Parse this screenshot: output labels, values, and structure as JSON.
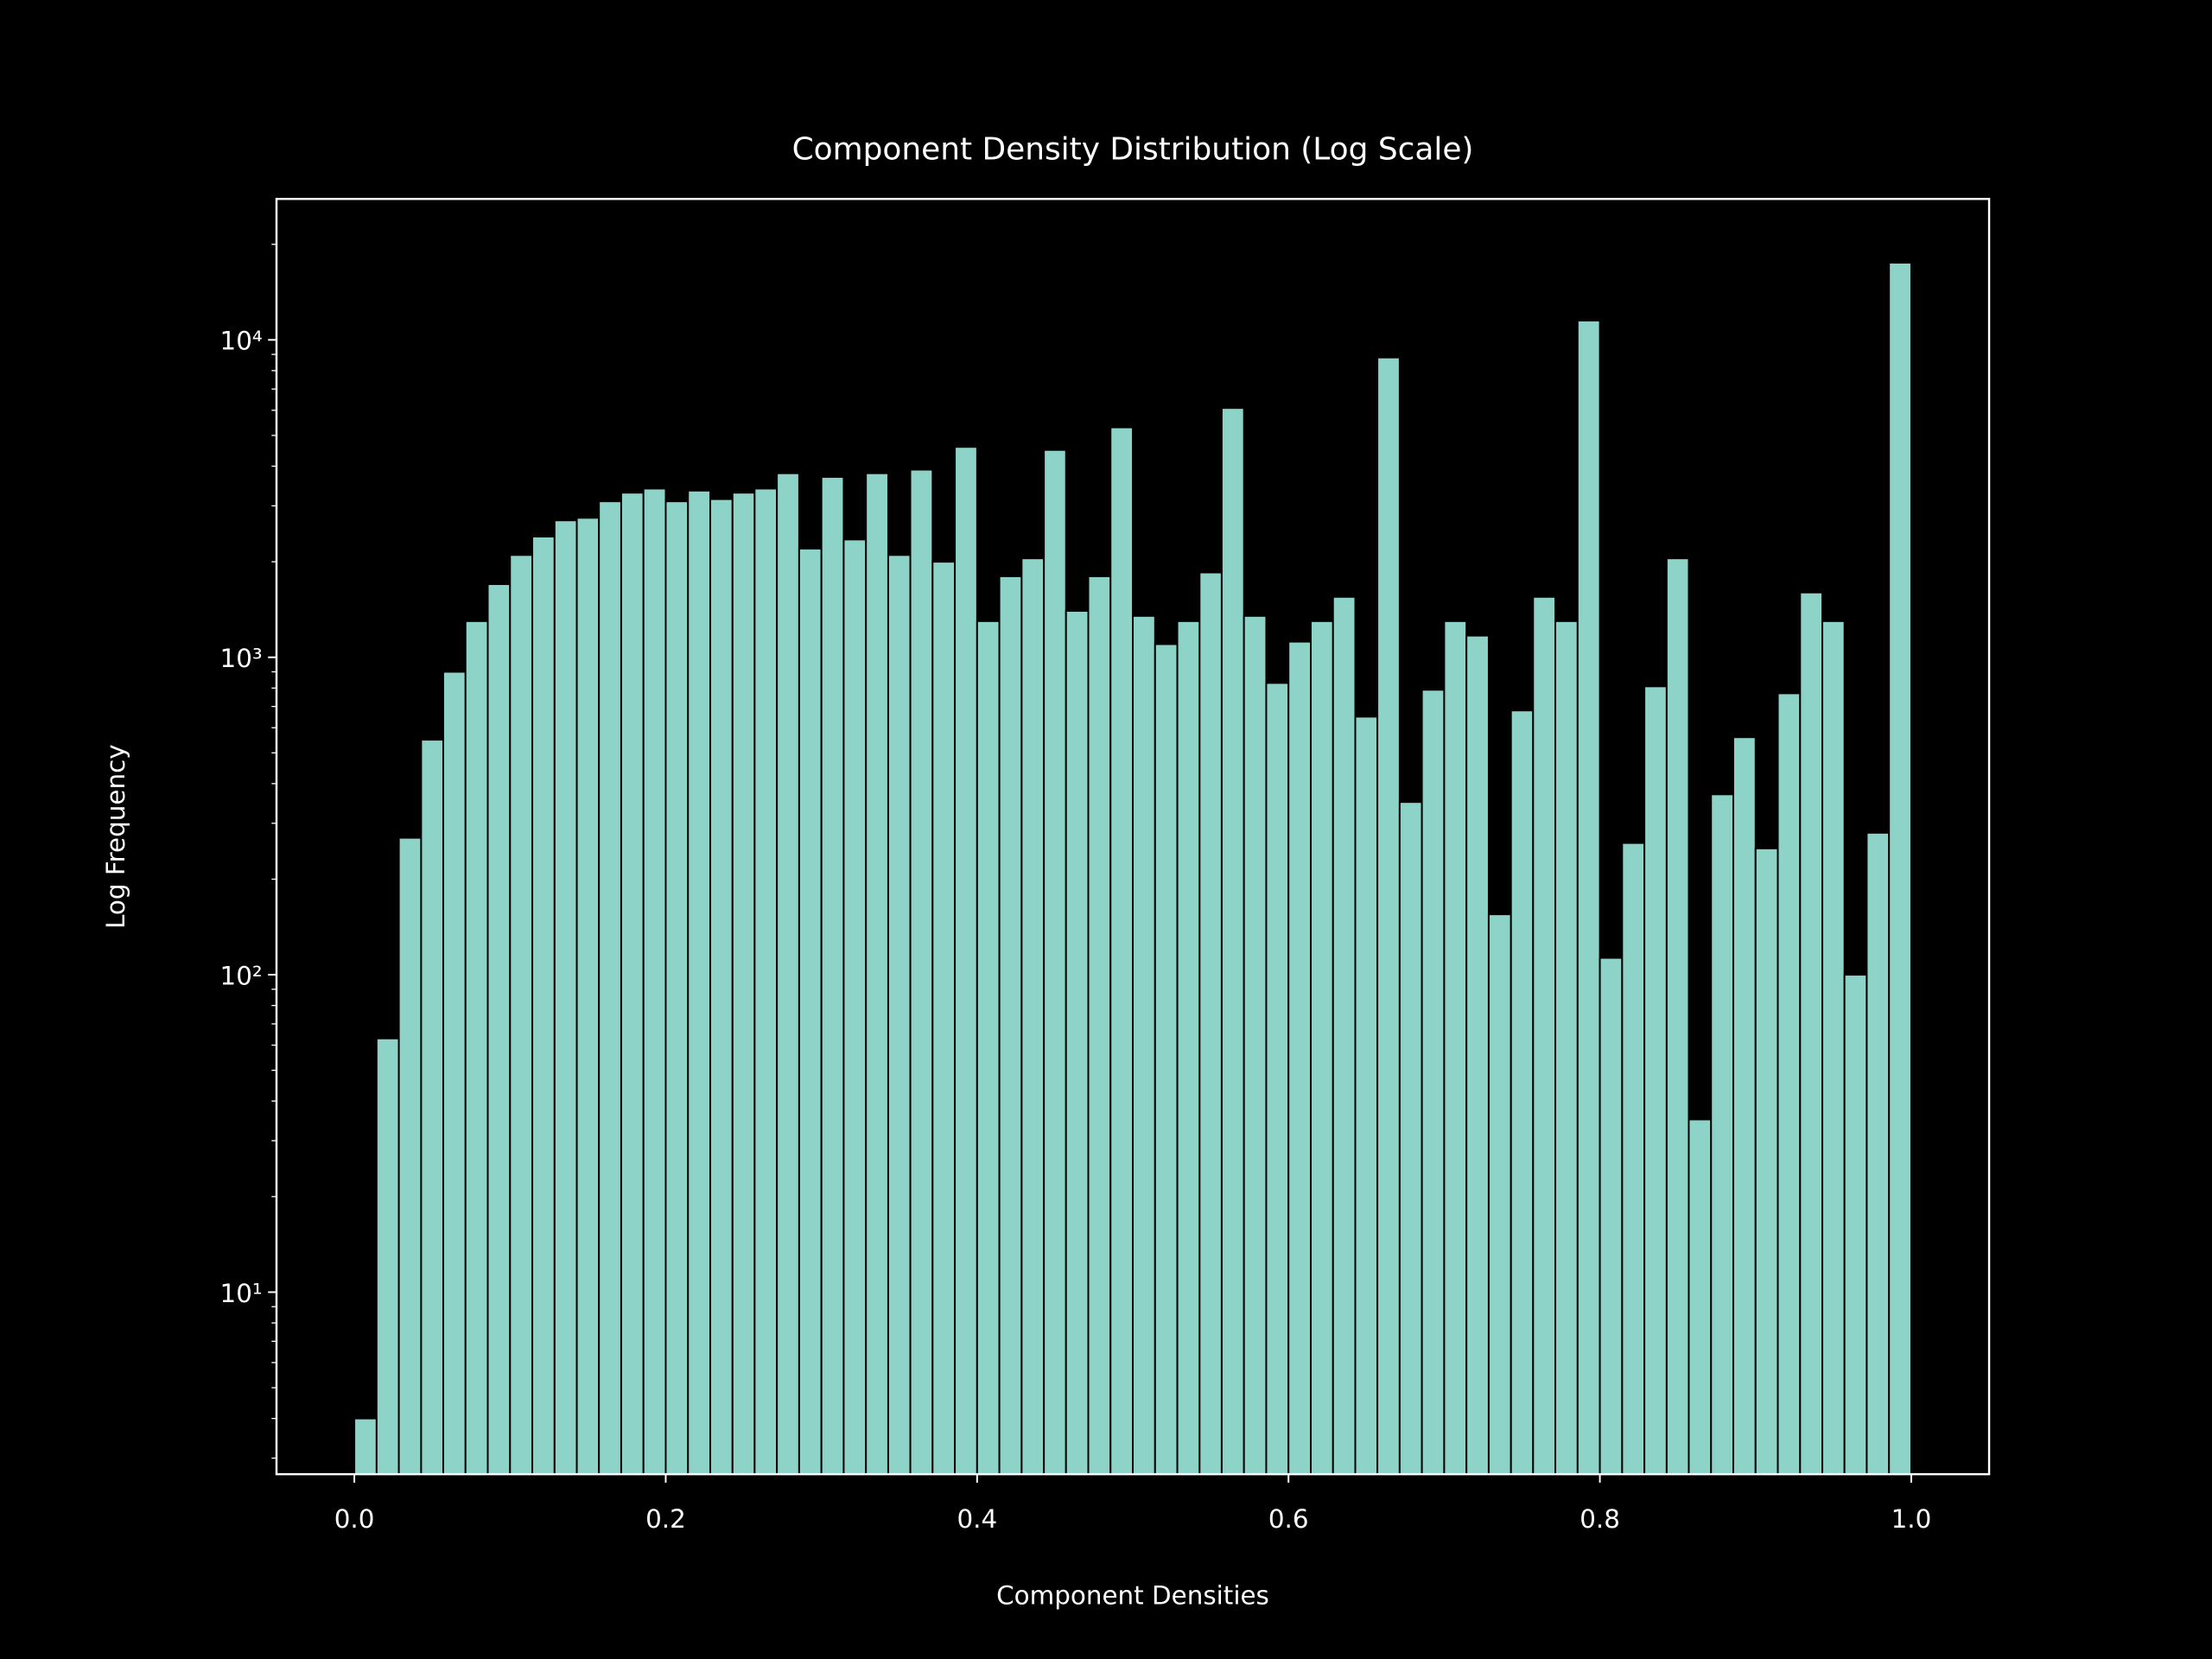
{
  "chart_data": {
    "type": "histogram",
    "title": "Component Density Distribution (Log Scale)",
    "xlabel": "Component Densities",
    "ylabel": "Log Frequency",
    "color": "#8dd3c7",
    "edgecolor": "#000000",
    "background": "#000000",
    "log_y": true,
    "bins": [
      0,
      0.0143,
      0.0286,
      0.0429,
      0.0571,
      0.0714,
      0.0857,
      0.1,
      0.1143,
      0.1286,
      0.1429,
      0.1571,
      0.1714,
      0.1857,
      0.2,
      0.2143,
      0.2286,
      0.2429,
      0.2571,
      0.2714,
      0.2857,
      0.3,
      0.3143,
      0.3286,
      0.3429,
      0.3571,
      0.3714,
      0.3857,
      0.4,
      0.4143,
      0.4286,
      0.4429,
      0.4571,
      0.4714,
      0.4857,
      0.5,
      0.5143,
      0.5286,
      0.5429,
      0.5571,
      0.5714,
      0.5857,
      0.6,
      0.6143,
      0.6286,
      0.6429,
      0.6571,
      0.6714,
      0.6857,
      0.7,
      0.7143,
      0.7286,
      0.7429,
      0.7571,
      0.7714,
      0.7857,
      0.8,
      0.8143,
      0.8286,
      0.8429,
      0.8571,
      0.8714,
      0.8857,
      0.9,
      0.9143,
      0.9286,
      0.9429,
      0.9571,
      0.9714,
      0.9857,
      1
    ],
    "values": [
      4,
      63,
      270,
      550,
      900,
      1300,
      1700,
      2100,
      2400,
      2700,
      2750,
      3100,
      3300,
      3400,
      3100,
      3350,
      3150,
      3300,
      3400,
      3800,
      2200,
      3700,
      2350,
      3800,
      2100,
      3900,
      2000,
      4600,
      1300,
      1800,
      2050,
      4500,
      1400,
      1800,
      5300,
      1350,
      1100,
      1300,
      1850,
      6100,
      1350,
      830,
      1120,
      1300,
      1550,
      650,
      8800,
      350,
      790,
      1300,
      1170,
      155,
      680,
      1550,
      1300,
      11500,
      113,
      260,
      810,
      2050,
      35,
      370,
      560,
      250,
      770,
      1600,
      1300,
      100,
      280,
      17500
    ],
    "xlim": [
      -0.05,
      1.05
    ],
    "ylim": [
      2.67,
      27800
    ],
    "xticks": [
      {
        "value": 0,
        "label": "0.0"
      },
      0.2,
      0.4,
      0.6,
      0.8,
      {
        "value": 1,
        "label": "1.0"
      }
    ],
    "yticks": [
      {
        "value": 10,
        "label": "10¹"
      },
      {
        "value": 100,
        "label": "10²"
      },
      {
        "value": 1000,
        "label": "10³"
      },
      {
        "value": 10000,
        "label": "10⁴"
      }
    ],
    "yticks_minor": [
      3,
      4,
      5,
      6,
      7,
      8,
      9,
      20,
      30,
      40,
      50,
      60,
      70,
      80,
      90,
      200,
      300,
      400,
      500,
      600,
      700,
      800,
      900,
      2000,
      3000,
      4000,
      5000,
      6000,
      7000,
      8000,
      9000,
      20000
    ]
  }
}
